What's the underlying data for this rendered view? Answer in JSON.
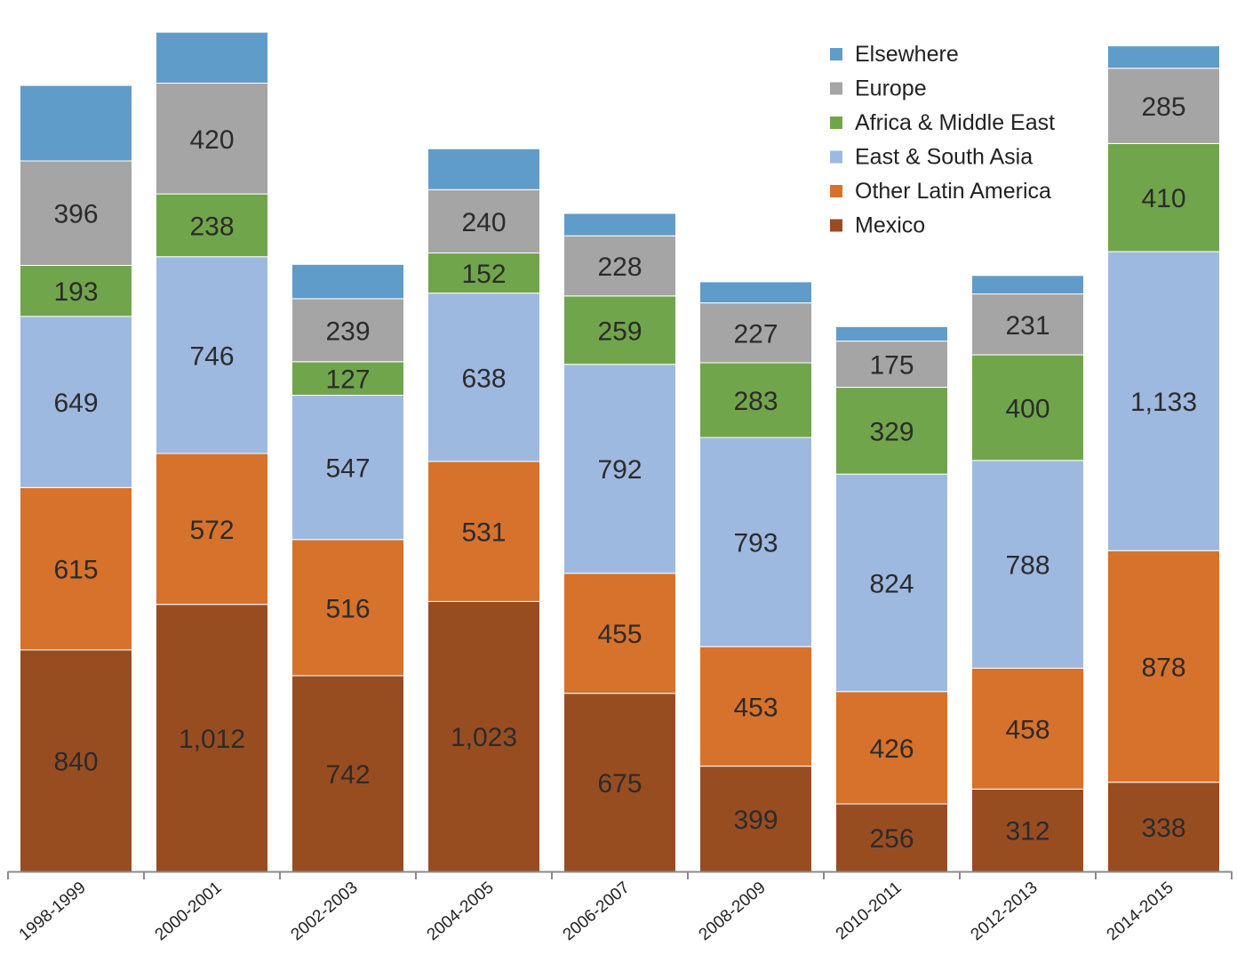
{
  "chart_data": {
    "type": "bar",
    "stacked": true,
    "title": "",
    "xlabel": "",
    "ylabel": "",
    "ylim": [
      0,
      3268
    ],
    "grid": false,
    "legend_position": "top-right",
    "categories": [
      "1998-1999",
      "2000-2001",
      "2002-2003",
      "2004-2005",
      "2006-2007",
      "2008-2009",
      "2010-2011",
      "2012-2013",
      "2014-2015"
    ],
    "series": [
      {
        "name": "Mexico",
        "color": "#984d21",
        "values": [
          840,
          1012,
          742,
          1023,
          675,
          399,
          256,
          312,
          338
        ],
        "labels": [
          "840",
          "1,012",
          "742",
          "1,023",
          "675",
          "399",
          "256",
          "312",
          "338"
        ]
      },
      {
        "name": "Other Latin America",
        "color": "#d6722b",
        "values": [
          615,
          572,
          516,
          531,
          455,
          453,
          426,
          458,
          878
        ],
        "labels": [
          "615",
          "572",
          "516",
          "531",
          "455",
          "453",
          "426",
          "458",
          "878"
        ]
      },
      {
        "name": "East & South Asia",
        "color": "#9eb9e0",
        "values": [
          649,
          746,
          547,
          638,
          792,
          793,
          824,
          788,
          1133
        ],
        "labels": [
          "649",
          "746",
          "547",
          "638",
          "792",
          "793",
          "824",
          "788",
          "1,133"
        ]
      },
      {
        "name": "Africa & Middle East",
        "color": "#71a54c",
        "values": [
          193,
          238,
          127,
          152,
          259,
          283,
          329,
          400,
          410
        ],
        "labels": [
          "193",
          "238",
          "127",
          "152",
          "259",
          "283",
          "329",
          "400",
          "410"
        ]
      },
      {
        "name": "Europe",
        "color": "#a5a5a5",
        "values": [
          396,
          420,
          239,
          240,
          228,
          227,
          175,
          231,
          285
        ],
        "labels": [
          "396",
          "420",
          "239",
          "240",
          "228",
          "227",
          "175",
          "231",
          "285"
        ]
      },
      {
        "name": "Elsewhere",
        "color": "#5f9cc9",
        "values": [
          286,
          193,
          130,
          155,
          85,
          80,
          55,
          70,
          85
        ],
        "labels": [
          "",
          "",
          "",
          "",
          "",
          "",
          "",
          "",
          ""
        ]
      }
    ],
    "legend_order": [
      "Elsewhere",
      "Europe",
      "Africa & Middle East",
      "East & South Asia",
      "Other Latin America",
      "Mexico"
    ]
  }
}
